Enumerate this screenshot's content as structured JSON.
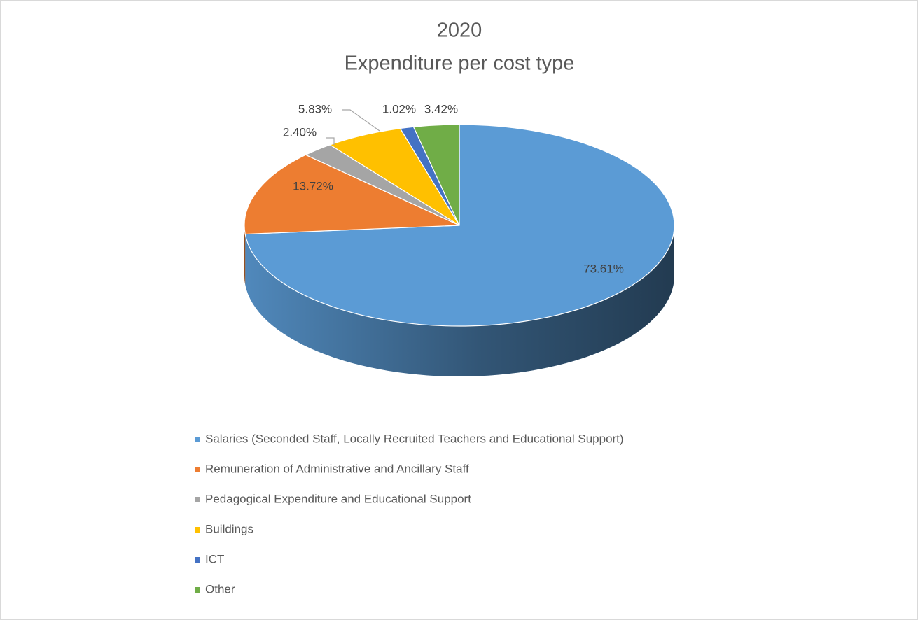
{
  "chart_data": {
    "type": "pie",
    "title": "2020",
    "subtitle": "Expenditure per cost type",
    "categories": [
      "Salaries (Seconded Staff, Locally Recruited Teachers and Educational Support)",
      "Remuneration of Administrative and Ancillary Staff",
      "Pedagogical Expenditure and Educational Support",
      "Buildings",
      "ICT",
      "Other"
    ],
    "values": [
      73.61,
      13.72,
      2.4,
      5.83,
      1.02,
      3.42
    ],
    "value_labels": [
      "73.61%",
      "13.72%",
      "2.40%",
      "5.83%",
      "1.02%",
      "3.42%"
    ],
    "colors": [
      "#5b9bd5",
      "#ed7d31",
      "#a5a5a5",
      "#ffc000",
      "#4472c4",
      "#70ad47"
    ],
    "legend": "bottom"
  }
}
